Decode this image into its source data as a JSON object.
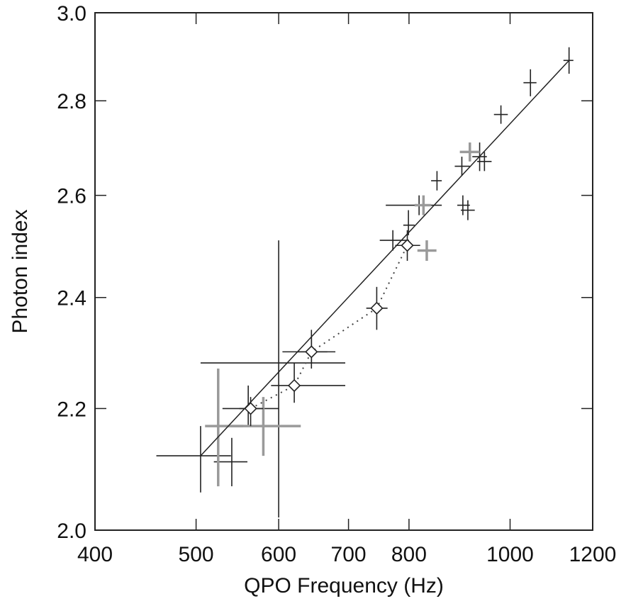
{
  "chart_data": {
    "type": "scatter",
    "title": "",
    "xlabel": "QPO Frequency (Hz)",
    "ylabel": "Photon index",
    "x_scale": "log",
    "y_scale": "log",
    "xlim": [
      400,
      1200
    ],
    "ylim": [
      2.0,
      3.0
    ],
    "x_ticks": [
      400,
      500,
      600,
      700,
      800,
      1000,
      1200
    ],
    "x_tick_labels": [
      "400",
      "500",
      "600",
      "700",
      "800",
      "1000",
      "1200"
    ],
    "y_ticks": [
      2.0,
      2.2,
      2.4,
      2.6,
      2.8,
      3.0
    ],
    "y_tick_labels": [
      "2.0",
      "2.2",
      "2.4",
      "2.6",
      "2.8",
      "3.0"
    ],
    "grid": false,
    "series": [
      {
        "marker": "cross",
        "color": "#222222",
        "points": [
          {
            "x": 505,
            "y": 2.12,
            "xlo": 458,
            "xhi": 540,
            "ylo": 2.06,
            "yhi": 2.17
          },
          {
            "x": 541,
            "y": 2.11,
            "xlo": 520,
            "xhi": 560,
            "ylo": 2.07,
            "yhi": 2.15
          },
          {
            "x": 561,
            "y": 2.2,
            "xlo": 530,
            "xhi": 600,
            "ylo": 2.17,
            "yhi": 2.24
          },
          {
            "x": 600,
            "y": 2.28,
            "xlo": 505,
            "xhi": 695,
            "ylo": 2.02,
            "yhi": 2.51
          },
          {
            "x": 645,
            "y": 2.3,
            "xlo": 605,
            "xhi": 680,
            "ylo": 2.27,
            "yhi": 2.34
          },
          {
            "x": 772,
            "y": 2.51,
            "xlo": 750,
            "xhi": 800,
            "ylo": 2.49,
            "yhi": 2.53
          },
          {
            "x": 799,
            "y": 2.54,
            "xlo": 790,
            "xhi": 810,
            "ylo": 2.52,
            "yhi": 2.57
          },
          {
            "x": 818,
            "y": 2.58,
            "xlo": 760,
            "xhi": 860,
            "ylo": 2.56,
            "yhi": 2.6
          },
          {
            "x": 851,
            "y": 2.63,
            "xlo": 840,
            "xhi": 860,
            "ylo": 2.61,
            "yhi": 2.65
          },
          {
            "x": 899,
            "y": 2.66,
            "xlo": 885,
            "xhi": 915,
            "ylo": 2.64,
            "yhi": 2.68
          },
          {
            "x": 935,
            "y": 2.68,
            "xlo": 920,
            "xhi": 950,
            "ylo": 2.65,
            "yhi": 2.71
          },
          {
            "x": 901,
            "y": 2.58,
            "xlo": 890,
            "xhi": 915,
            "ylo": 2.56,
            "yhi": 2.6
          },
          {
            "x": 911,
            "y": 2.57,
            "xlo": 897,
            "xhi": 925,
            "ylo": 2.55,
            "yhi": 2.59
          },
          {
            "x": 945,
            "y": 2.67,
            "xlo": 930,
            "xhi": 960,
            "ylo": 2.65,
            "yhi": 2.69
          },
          {
            "x": 980,
            "y": 2.77,
            "xlo": 965,
            "xhi": 995,
            "ylo": 2.75,
            "yhi": 2.79
          },
          {
            "x": 1046,
            "y": 2.84,
            "xlo": 1030,
            "xhi": 1060,
            "ylo": 2.81,
            "yhi": 2.87
          },
          {
            "x": 1139,
            "y": 2.89,
            "xlo": 1125,
            "xhi": 1150,
            "ylo": 2.86,
            "yhi": 2.92
          }
        ]
      },
      {
        "marker": "cross",
        "color": "#9a9a9a",
        "points": [
          {
            "x": 525,
            "y": 2.17,
            "xlo": 510,
            "xhi": 555,
            "ylo": 2.07,
            "yhi": 2.27
          },
          {
            "x": 580,
            "y": 2.17,
            "xlo": 540,
            "xhi": 630,
            "ylo": 2.12,
            "yhi": 2.22
          },
          {
            "x": 832,
            "y": 2.49,
            "xlo": 815,
            "xhi": 850,
            "ylo": 2.47,
            "yhi": 2.51
          },
          {
            "x": 826,
            "y": 2.58,
            "xlo": 810,
            "xhi": 840,
            "ylo": 2.56,
            "yhi": 2.6
          },
          {
            "x": 915,
            "y": 2.69,
            "xlo": 895,
            "xhi": 935,
            "ylo": 2.67,
            "yhi": 2.71
          }
        ]
      },
      {
        "marker": "diamond",
        "color": "#222222",
        "points": [
          {
            "x": 564,
            "y": 2.2,
            "xlo": 550,
            "xhi": 580,
            "ylo": 2.17,
            "yhi": 2.22
          },
          {
            "x": 621,
            "y": 2.24,
            "xlo": 590,
            "xhi": 695,
            "ylo": 2.21,
            "yhi": 2.28
          },
          {
            "x": 645,
            "y": 2.3,
            "xlo": 625,
            "xhi": 668,
            "ylo": 2.28,
            "yhi": 2.33
          },
          {
            "x": 745,
            "y": 2.38,
            "xlo": 728,
            "xhi": 763,
            "ylo": 2.34,
            "yhi": 2.42
          },
          {
            "x": 797,
            "y": 2.5,
            "xlo": 776,
            "xhi": 820,
            "ylo": 2.47,
            "yhi": 2.53
          }
        ]
      }
    ],
    "fit_line": {
      "style": "solid",
      "color": "#222222",
      "from": [
        505,
        2.12
      ],
      "to": [
        1139,
        2.89
      ]
    },
    "dotted_line": {
      "style": "dotted",
      "color": "#444444",
      "points": [
        [
          564,
          2.2
        ],
        [
          621,
          2.24
        ],
        [
          645,
          2.3
        ],
        [
          745,
          2.38
        ],
        [
          797,
          2.5
        ]
      ]
    }
  }
}
